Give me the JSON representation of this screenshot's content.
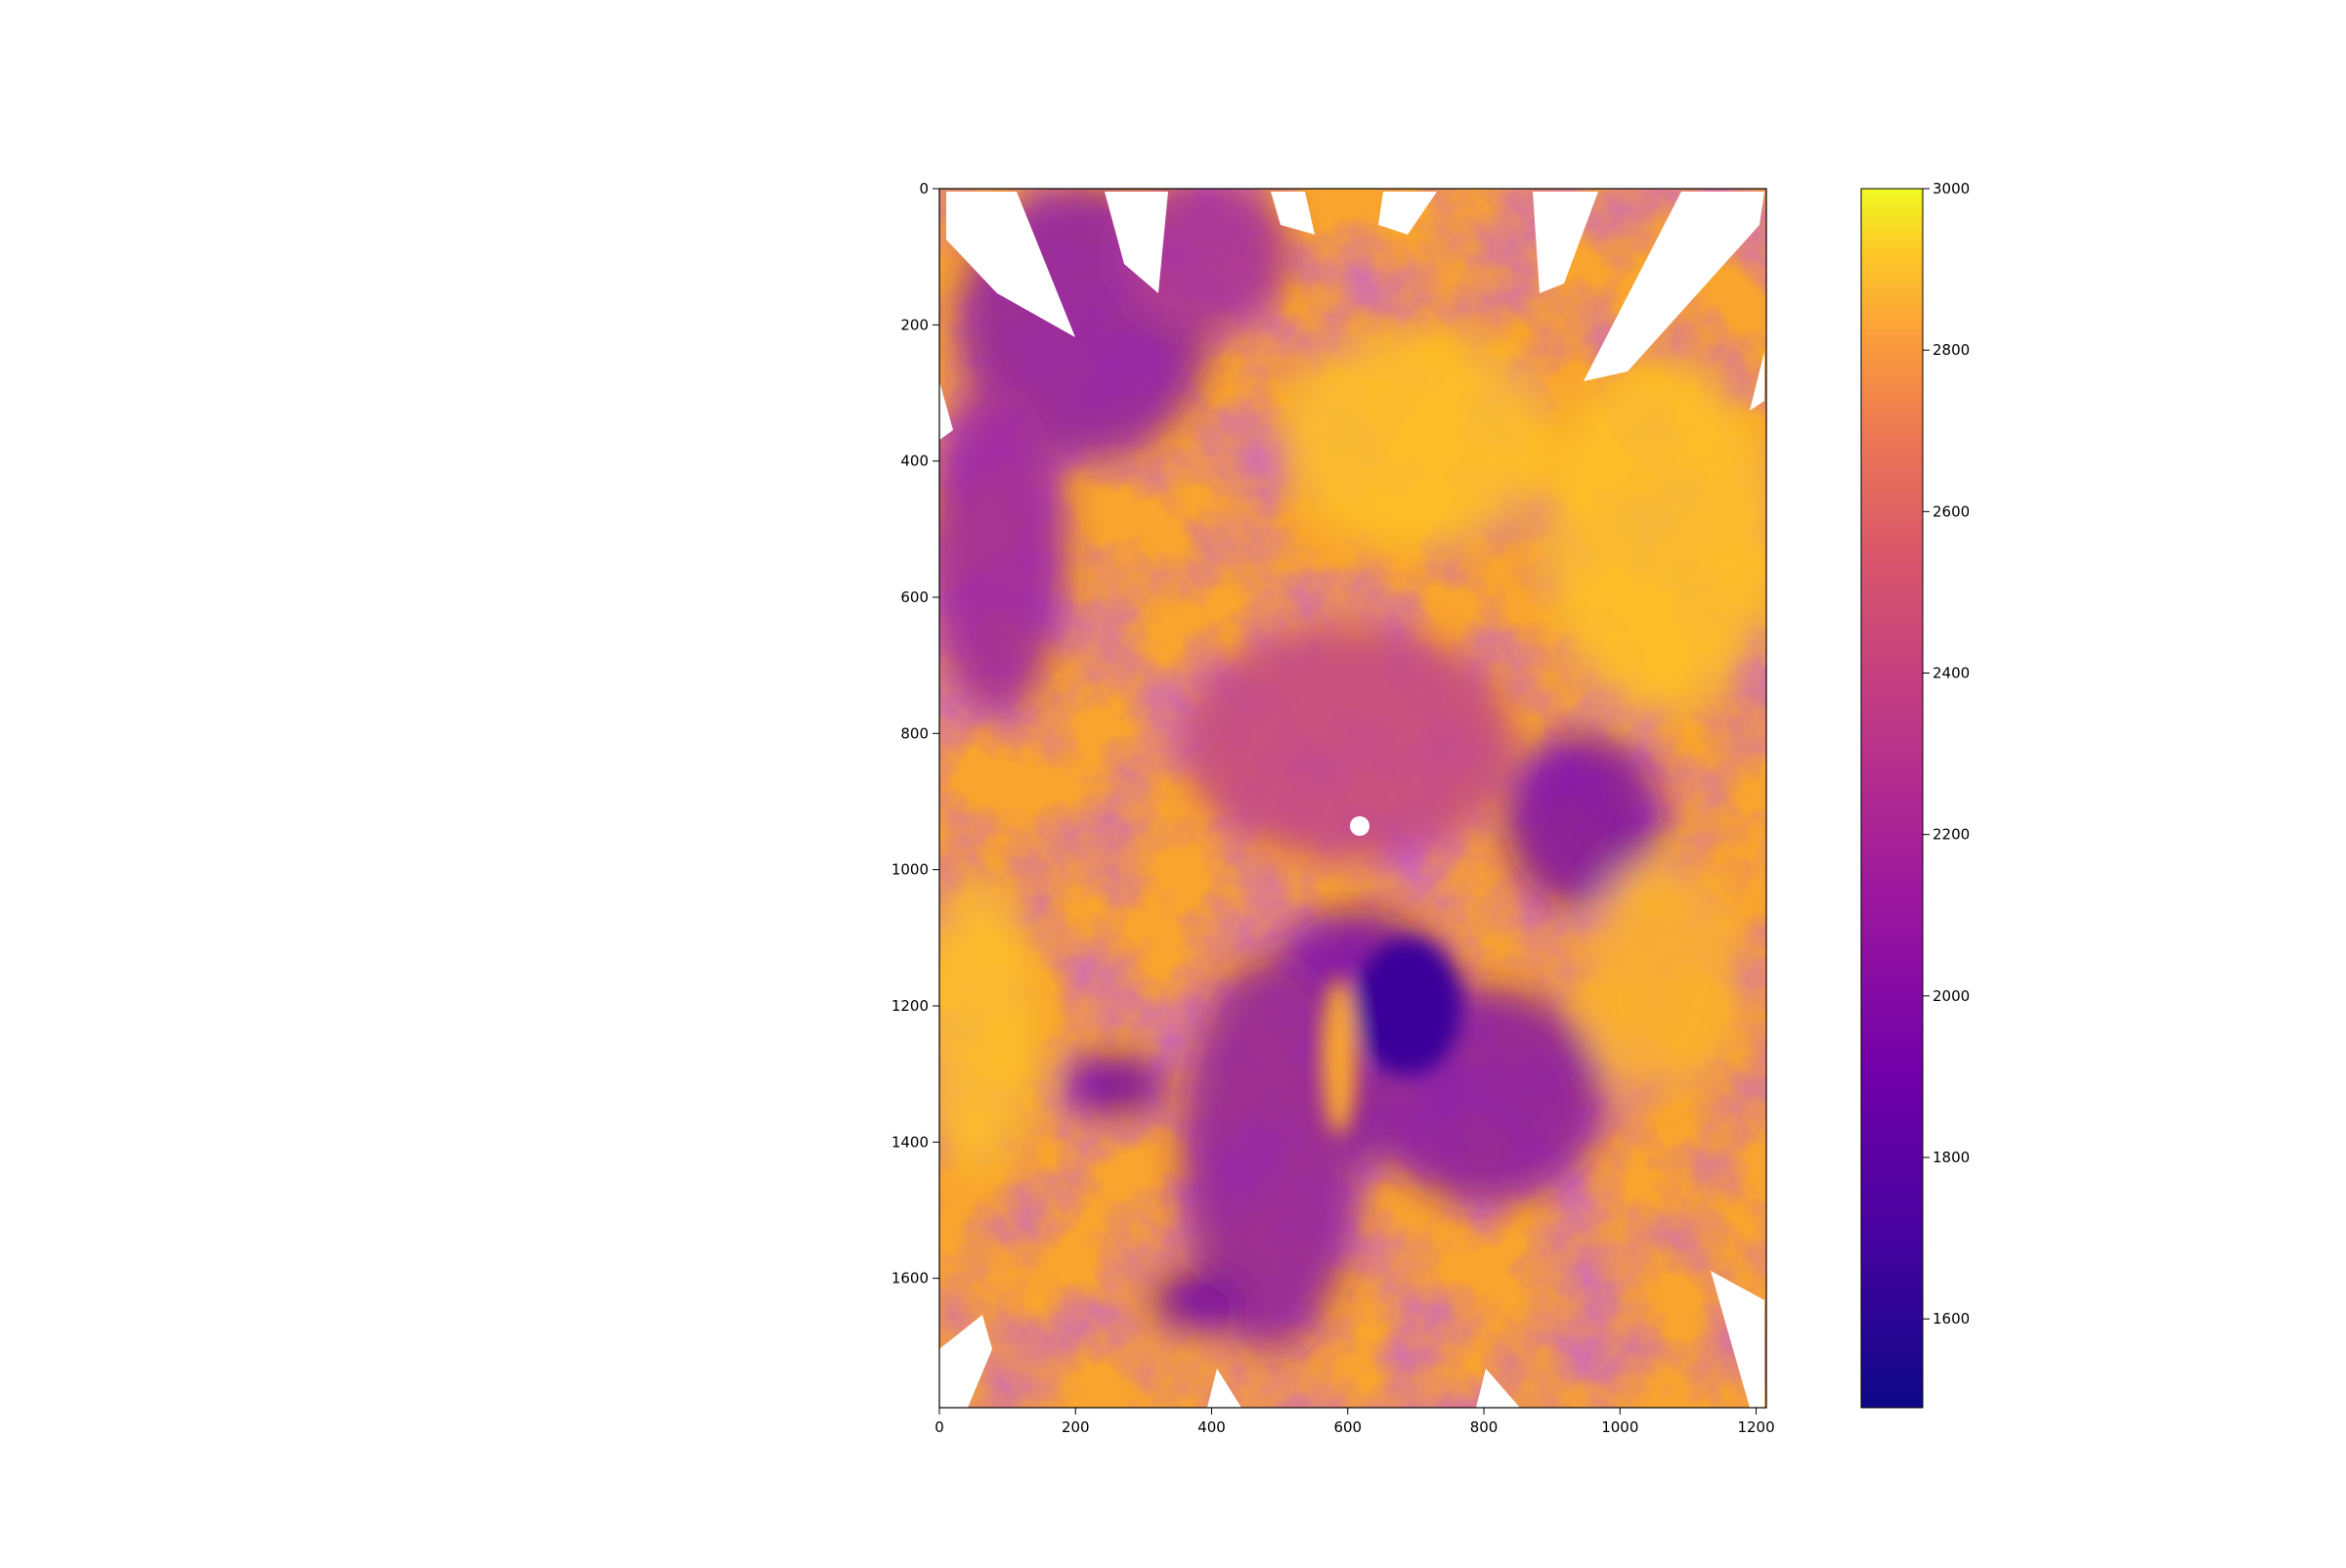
{
  "chart_data": {
    "type": "heatmap",
    "title": "",
    "xlabel": "",
    "ylabel": "",
    "x_range": [
      0,
      1215
    ],
    "y_range": [
      1790,
      0
    ],
    "x_ticks": [
      0,
      200,
      400,
      600,
      800,
      1000,
      1200
    ],
    "y_ticks": [
      0,
      200,
      400,
      600,
      800,
      1000,
      1200,
      1400,
      1600
    ],
    "colormap": "plasma",
    "colorbar": {
      "range": [
        1490,
        3000
      ],
      "ticks": [
        1600,
        1800,
        2000,
        2200,
        2400,
        2600,
        2800,
        3000
      ]
    },
    "masked_color": "#ffffff",
    "grid": false,
    "legend": "none"
  }
}
